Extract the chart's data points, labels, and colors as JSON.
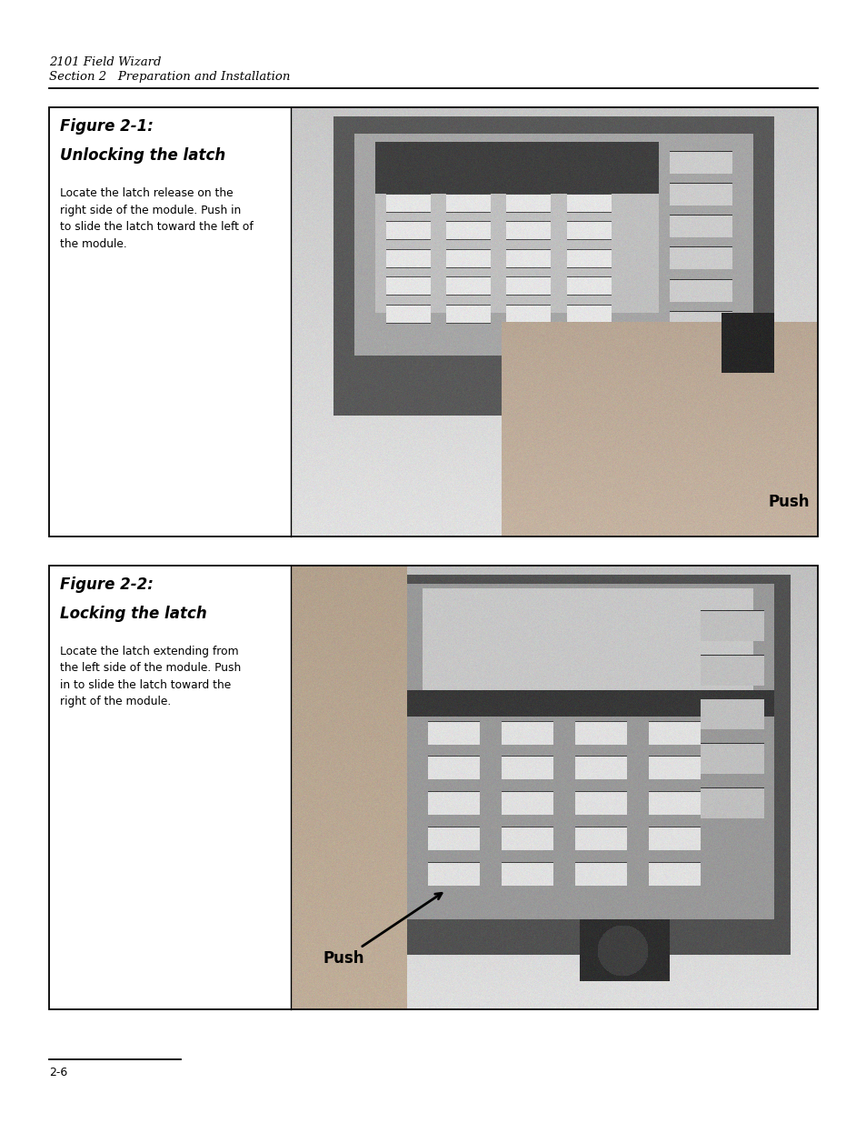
{
  "bg_color": "#ffffff",
  "page_width": 9.54,
  "page_height": 12.35,
  "dpi": 100,
  "header_line1": "2101 Field Wizard",
  "header_line2": "Section 2   Preparation and Installation",
  "footer_text": "2-6",
  "fig1_title_line1": "Figure 2-1:",
  "fig1_title_line2": "Unlocking the latch",
  "fig1_body": "Locate the latch release on the\nright side of the module. Push in\nto slide the latch toward the left of\nthe module.",
  "fig2_title_line1": "Figure 2-2:",
  "fig2_title_line2": "Locking the latch",
  "fig2_body": "Locate the latch extending from\nthe left side of the module. Push\nin to slide the latch toward the\nright of the module.",
  "push_label": "Push",
  "header_font_size": 9.5,
  "title_font_size": 12,
  "body_font_size": 8.8,
  "footer_font_size": 9,
  "push_font_size": 12,
  "text_color": "#000000",
  "box_edge_color": "#000000",
  "img_bg_light": "#d8d8d8",
  "img_bg_mid": "#b0b0b0",
  "device_dark": "#2a2a2a",
  "device_body": "#606060",
  "device_mid": "#888888",
  "device_light": "#aaaaaa",
  "hand_color": "#b8a898",
  "key_light": "#cccccc",
  "key_dark": "#444444",
  "screen_dark": "#222222",
  "screen_mid": "#909090"
}
